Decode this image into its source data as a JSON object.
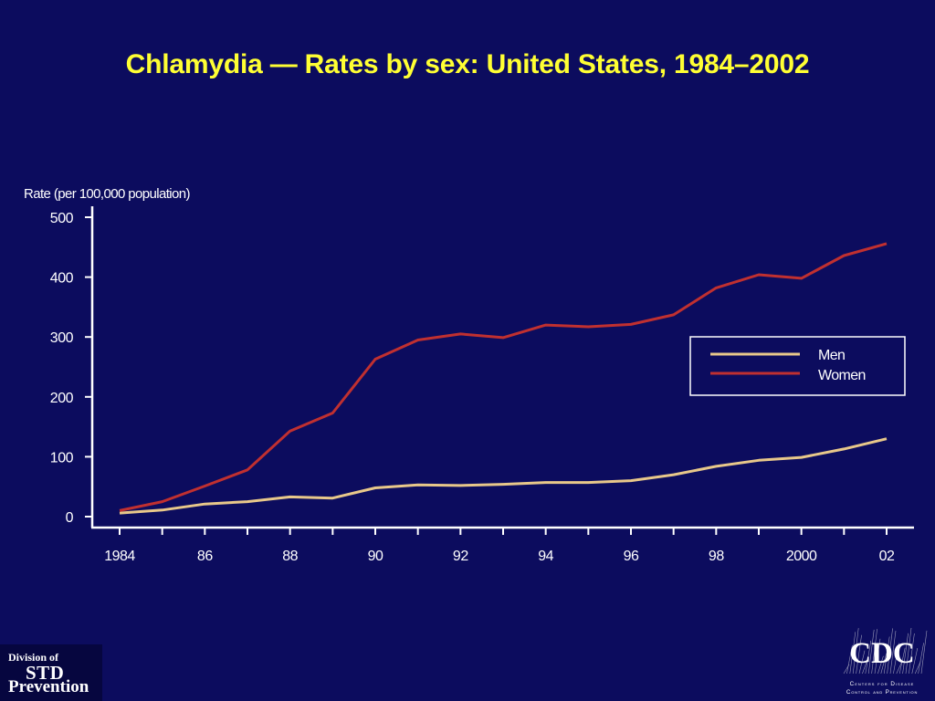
{
  "title": "Chlamydia — Rates by sex: United States, 1984–2002",
  "chart_data": {
    "type": "line",
    "title": "Chlamydia — Rates by sex: United States, 1984–2002",
    "ylabel": "Rate (per 100,000 population)",
    "xlabel": "",
    "x": [
      1984,
      1985,
      1986,
      1987,
      1988,
      1989,
      1990,
      1991,
      1992,
      1993,
      1994,
      1995,
      1996,
      1997,
      1998,
      1999,
      2000,
      2001,
      2002
    ],
    "xticks": [
      1984,
      1986,
      1988,
      1990,
      1992,
      1994,
      1996,
      1998,
      2000,
      2002
    ],
    "xtick_labels": [
      "1984",
      "86",
      "88",
      "90",
      "92",
      "94",
      "96",
      "98",
      "2000",
      "02"
    ],
    "yticks": [
      0,
      100,
      200,
      300,
      400,
      500
    ],
    "ylim": [
      0,
      500
    ],
    "xlim": [
      1984,
      2002
    ],
    "grid": false,
    "legend_position": "right",
    "series": [
      {
        "name": "Men",
        "color": "#e8c88a",
        "values": [
          6,
          11,
          21,
          25,
          33,
          31,
          48,
          53,
          52,
          54,
          57,
          57,
          60,
          70,
          84,
          94,
          99,
          113,
          130
        ]
      },
      {
        "name": "Women",
        "color": "#c03030",
        "values": [
          10,
          25,
          51,
          78,
          143,
          173,
          263,
          295,
          305,
          299,
          320,
          317,
          321,
          337,
          382,
          404,
          398,
          436,
          456
        ]
      }
    ]
  },
  "logos": {
    "std": {
      "line1": "Division of",
      "line2": "STD",
      "line3": "Prevention"
    },
    "cdc": {
      "acronym": "CDC",
      "line1": "Centers for Disease",
      "line2": "Control and Prevention"
    }
  },
  "colors": {
    "background": "#0c0c5e",
    "title": "#ffff33",
    "axis": "#ffffff"
  }
}
